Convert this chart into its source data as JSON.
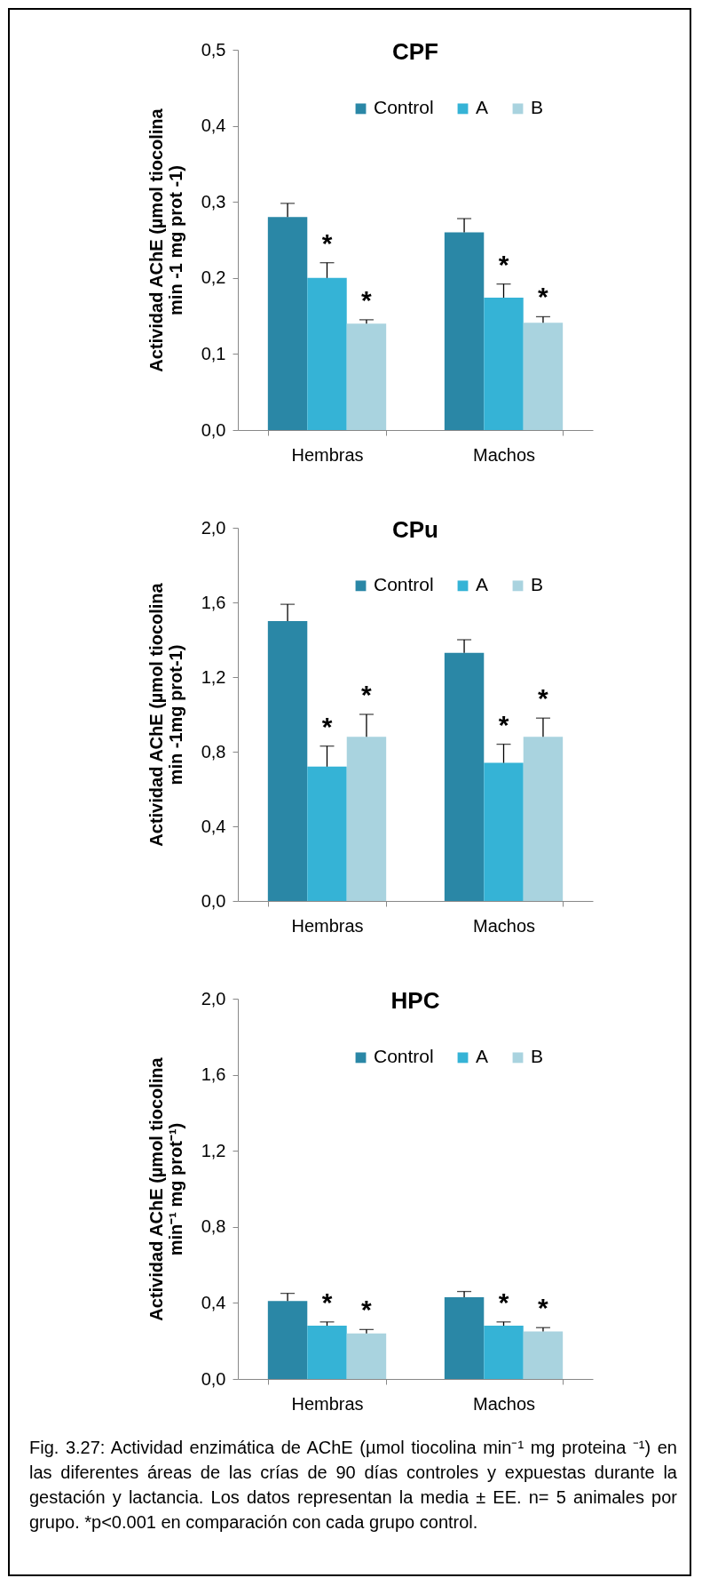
{
  "chart_data": [
    {
      "type": "bar",
      "title": "CPF",
      "ylabel": "Actividad AChE (µmol tiocolina\nmin -1 mg prot -1)",
      "categories": [
        "Hembras",
        "Machos"
      ],
      "series": [
        {
          "name": "Control",
          "color": "#2a87a6",
          "values": [
            0.28,
            0.26
          ],
          "errors": [
            0.018,
            0.018
          ]
        },
        {
          "name": "A",
          "color": "#35b3d6",
          "values": [
            0.2,
            0.174
          ],
          "errors": [
            0.02,
            0.018
          ],
          "value_labels": [
            "*",
            "*"
          ]
        },
        {
          "name": "B",
          "color": "#a9d3df",
          "values": [
            0.14,
            0.141
          ],
          "errors": [
            0.005,
            0.008
          ],
          "value_labels": [
            "*",
            "*"
          ]
        }
      ],
      "ylim": [
        0,
        0.5
      ],
      "yticks": [
        {
          "value": 0,
          "label": "0,0"
        },
        {
          "value": 0.1,
          "label": "0,1"
        },
        {
          "value": 0.2,
          "label": "0,2"
        },
        {
          "value": 0.3,
          "label": "0,3"
        },
        {
          "value": 0.4,
          "label": "0,4"
        },
        {
          "value": 0.5,
          "label": "0,5"
        }
      ],
      "legend": "top"
    },
    {
      "type": "bar",
      "title": "CPu",
      "ylabel": "Actividad AChE (µmol tiocolina\nmin -1mg prot-1)",
      "categories": [
        "Hembras",
        "Machos"
      ],
      "series": [
        {
          "name": "Control",
          "color": "#2a87a6",
          "values": [
            1.5,
            1.33
          ],
          "errors": [
            0.09,
            0.07
          ]
        },
        {
          "name": "A",
          "color": "#35b3d6",
          "values": [
            0.72,
            0.74
          ],
          "errors": [
            0.11,
            0.1
          ],
          "value_labels": [
            "*",
            "*"
          ]
        },
        {
          "name": "B",
          "color": "#a9d3df",
          "values": [
            0.88,
            0.88
          ],
          "errors": [
            0.12,
            0.1
          ],
          "value_labels": [
            "*",
            "*"
          ]
        }
      ],
      "ylim": [
        0,
        2
      ],
      "yticks": [
        {
          "value": 0,
          "label": "0,0"
        },
        {
          "value": 0.4,
          "label": "0,4"
        },
        {
          "value": 0.8,
          "label": "0,8"
        },
        {
          "value": 1.2,
          "label": "1,2"
        },
        {
          "value": 1.6,
          "label": "1,6"
        },
        {
          "value": 2,
          "label": "2,0"
        }
      ],
      "legend": "top"
    },
    {
      "type": "bar",
      "title": "HPC",
      "ylabel": "Actividad AChE (µmol tiocolina\nmin⁻¹ mg prot⁻¹)",
      "categories": [
        "Hembras",
        "Machos"
      ],
      "series": [
        {
          "name": "Control",
          "color": "#2a87a6",
          "values": [
            0.41,
            0.43
          ],
          "errors": [
            0.04,
            0.03
          ]
        },
        {
          "name": "A",
          "color": "#35b3d6",
          "values": [
            0.28,
            0.28
          ],
          "errors": [
            0.02,
            0.02
          ],
          "value_labels": [
            "*",
            "*"
          ]
        },
        {
          "name": "B",
          "color": "#a9d3df",
          "values": [
            0.24,
            0.25
          ],
          "errors": [
            0.02,
            0.02
          ],
          "value_labels": [
            "*",
            "*"
          ]
        }
      ],
      "ylim": [
        0,
        2
      ],
      "yticks": [
        {
          "value": 0,
          "label": "0,0"
        },
        {
          "value": 0.4,
          "label": "0,4"
        },
        {
          "value": 0.8,
          "label": "0,8"
        },
        {
          "value": 1.2,
          "label": "1,2"
        },
        {
          "value": 1.6,
          "label": "1,6"
        },
        {
          "value": 2,
          "label": "2,0"
        }
      ],
      "legend": "top",
      "annotations": [
        "Fig. 3.27: Actividad enzimática de AChE (µmol tiocolina min⁻¹ mg proteina ⁻¹) en las diferentes áreas de las crías de 90 días controles y expuestas durante la gestación y lactancia. Los datos representan la media ± EE. n= 5 animales por grupo. *p<0.001 en comparación con cada grupo control."
      ]
    }
  ]
}
